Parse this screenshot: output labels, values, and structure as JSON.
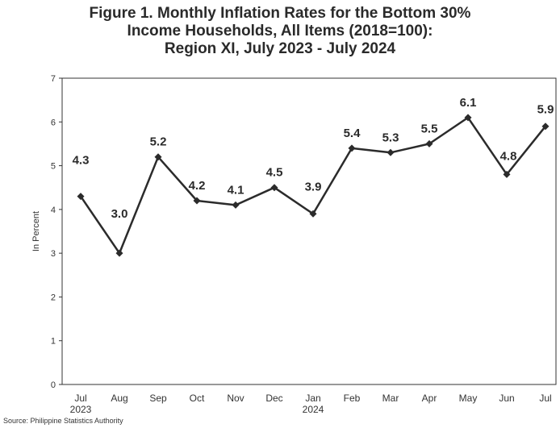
{
  "title_lines": [
    "Figure 1. Monthly Inflation Rates for the Bottom 30%",
    "Income Households, All Items (2018=100):",
    "Region XI, July 2023 - July 2024"
  ],
  "source": "Source: Philippine Statistics Authority",
  "chart_data": {
    "type": "line",
    "title": "Figure 1. Monthly Inflation Rates for the Bottom 30% Income Households, All Items (2018=100): Region XI, July 2023 - July 2024",
    "xlabel": "",
    "ylabel": "In Percent",
    "categories": [
      "Jul",
      "Aug",
      "Sep",
      "Oct",
      "Nov",
      "Dec",
      "Jan",
      "Feb",
      "Mar",
      "Apr",
      "May",
      "Jun",
      "Jul"
    ],
    "year_labels": [
      {
        "index": 0,
        "label": "2023"
      },
      {
        "index": 6,
        "label": "2024"
      }
    ],
    "series": [
      {
        "values": [
          4.3,
          3.0,
          5.2,
          4.2,
          4.1,
          4.5,
          3.9,
          5.4,
          5.3,
          5.5,
          6.1,
          4.8,
          5.9
        ]
      }
    ],
    "data_labels": [
      "4.3",
      "3.0",
      "5.2",
      "4.2",
      "4.1",
      "4.5",
      "3.9",
      "5.4",
      "5.3",
      "5.5",
      "6.1",
      "4.8",
      "5.9"
    ],
    "ylim": [
      0,
      7
    ],
    "yticks": [
      "0",
      "1",
      "2",
      "3",
      "4",
      "5",
      "6",
      "7"
    ],
    "grid": false,
    "legend": false,
    "line_color": "#2b2b2b"
  }
}
